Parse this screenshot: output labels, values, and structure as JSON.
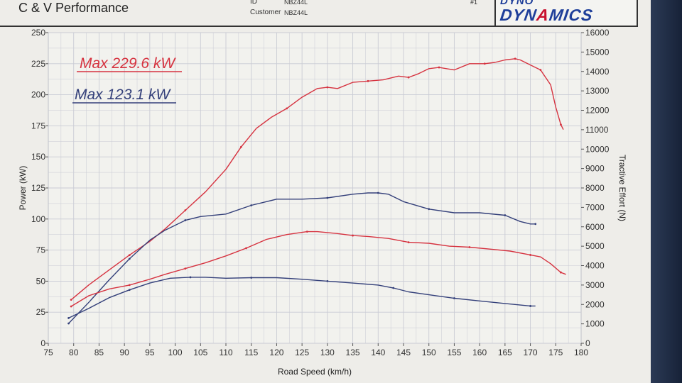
{
  "header": {
    "company": "C & V Performance",
    "id_label": "ID",
    "id_value": "NBZ44L",
    "customer_label": "Customer",
    "customer_value": "NBZ44L",
    "run_number": "#1",
    "logo_top": "DYNO",
    "logo_bottom_a": "DYN",
    "logo_bottom_b": "A",
    "logo_bottom_c": "MICS"
  },
  "colors": {
    "red_run": "#d63340",
    "blue_run": "#34407a",
    "grid": "#c9cbd4",
    "plot_bg": "#f2f2ee"
  },
  "chart_data": {
    "type": "line",
    "xlabel": "Road Speed (km/h)",
    "ylabel": "Power (kW)",
    "y2label": "Tractive Effort (N)",
    "xlim": [
      75,
      180
    ],
    "ylim": [
      0,
      250
    ],
    "y2lim": [
      0,
      16000
    ],
    "x_ticks": [
      75,
      80,
      85,
      90,
      95,
      100,
      105,
      110,
      115,
      120,
      125,
      130,
      135,
      140,
      145,
      150,
      155,
      160,
      165,
      170,
      175,
      180
    ],
    "y_ticks": [
      0,
      25,
      50,
      75,
      100,
      125,
      150,
      175,
      200,
      225,
      250
    ],
    "y2_ticks": [
      0,
      1000,
      2000,
      3000,
      4000,
      5000,
      6000,
      7000,
      8000,
      9000,
      10000,
      11000,
      12000,
      13000,
      14000,
      15000,
      16000
    ],
    "grid": true,
    "annotations": [
      {
        "text": "Max 229.6 kW",
        "series": "red"
      },
      {
        "text": "Max 123.1 kW",
        "series": "blue"
      }
    ],
    "series": [
      {
        "key": "red_power",
        "color_key": "red_run",
        "axis": "left",
        "x": [
          79.5,
          83,
          87,
          91,
          95,
          98,
          102,
          106,
          110,
          113,
          116,
          119,
          122,
          125,
          128,
          130,
          132,
          135,
          138,
          141,
          144,
          146,
          148,
          150,
          152,
          155,
          158,
          161,
          163,
          165,
          167,
          168,
          170,
          172,
          174,
          175,
          176,
          176.5
        ],
        "y": [
          35,
          47,
          59,
          71,
          82,
          92,
          107,
          122,
          140,
          158,
          173,
          182,
          189,
          198,
          205,
          206,
          205,
          210,
          211,
          212,
          215,
          214,
          217,
          221,
          222,
          220,
          225,
          225,
          226,
          228,
          229,
          228,
          224,
          220,
          208,
          190,
          176,
          172
        ]
      },
      {
        "key": "blue_power",
        "color_key": "blue_run",
        "axis": "left",
        "x": [
          79,
          83,
          87,
          91,
          95,
          98,
          102,
          105,
          110,
          115,
          120,
          125,
          130,
          135,
          138,
          140,
          142,
          145,
          150,
          155,
          160,
          165,
          168,
          170,
          171
        ],
        "y": [
          16,
          33,
          51,
          68,
          83,
          91,
          99,
          102,
          104,
          111,
          116,
          116,
          117,
          120,
          121,
          121,
          120,
          114,
          108,
          105,
          105,
          103,
          98,
          96,
          96
        ]
      },
      {
        "key": "red_tractive",
        "color_key": "red_run",
        "axis": "right",
        "x": [
          79.5,
          83,
          87,
          91,
          95,
          98,
          102,
          106,
          110,
          114,
          118,
          122,
          126,
          128,
          132,
          135,
          138,
          142,
          146,
          150,
          154,
          158,
          162,
          166,
          170,
          172,
          174,
          176,
          177
        ],
        "y": [
          1900,
          2450,
          2800,
          3000,
          3300,
          3550,
          3850,
          4150,
          4500,
          4900,
          5350,
          5600,
          5750,
          5750,
          5650,
          5550,
          5500,
          5400,
          5200,
          5150,
          5000,
          4950,
          4850,
          4750,
          4550,
          4450,
          4100,
          3650,
          3550
        ]
      },
      {
        "key": "blue_tractive",
        "color_key": "blue_run",
        "axis": "right",
        "x": [
          79,
          83,
          87,
          91,
          95,
          99,
          103,
          106,
          110,
          115,
          120,
          125,
          130,
          135,
          140,
          143,
          146,
          150,
          155,
          160,
          165,
          170,
          171
        ],
        "y": [
          1300,
          1800,
          2350,
          2750,
          3100,
          3350,
          3400,
          3400,
          3350,
          3380,
          3380,
          3300,
          3200,
          3100,
          3000,
          2850,
          2650,
          2500,
          2320,
          2180,
          2050,
          1920,
          1920
        ]
      }
    ]
  }
}
